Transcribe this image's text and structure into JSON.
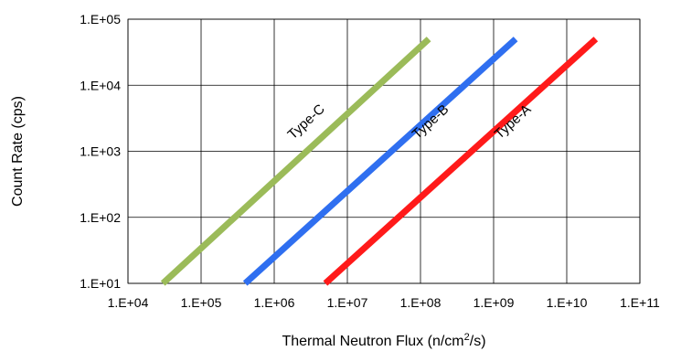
{
  "chart_data": {
    "type": "line",
    "xlabel": "Thermal Neutron Flux (n/cm",
    "xlabel_sup": "2",
    "xlabel_tail": "/s)",
    "ylabel": "Count Rate (cps)",
    "x_scale": "log",
    "y_scale": "log",
    "xlim": [
      10000,
      100000000000
    ],
    "ylim": [
      10,
      100000
    ],
    "x_ticks": [
      {
        "value": 10000,
        "label": "1.E+04"
      },
      {
        "value": 100000,
        "label": "1.E+05"
      },
      {
        "value": 1000000,
        "label": "1.E+06"
      },
      {
        "value": 10000000,
        "label": "1.E+07"
      },
      {
        "value": 100000000,
        "label": "1.E+08"
      },
      {
        "value": 1000000000,
        "label": "1.E+09"
      },
      {
        "value": 10000000000,
        "label": "1.E+10"
      },
      {
        "value": 100000000000,
        "label": "1.E+11"
      }
    ],
    "y_ticks": [
      {
        "value": 10,
        "label": "1.E+01"
      },
      {
        "value": 100,
        "label": "1.E+02"
      },
      {
        "value": 1000,
        "label": "1.E+03"
      },
      {
        "value": 10000,
        "label": "1.E+04"
      },
      {
        "value": 100000,
        "label": "1.E+05"
      }
    ],
    "grid": true,
    "legend": "none",
    "series": [
      {
        "name": "Type-C",
        "color": "#9BBB59",
        "x": [
          30000,
          130000000
        ],
        "y": [
          10,
          50000
        ]
      },
      {
        "name": "Type-B",
        "color": "#2F6FF0",
        "x": [
          400000,
          2000000000
        ],
        "y": [
          10,
          50000
        ]
      },
      {
        "name": "Type-A",
        "color": "#FF1A1A",
        "x": [
          5000000,
          25000000000
        ],
        "y": [
          10,
          50000
        ]
      }
    ],
    "series_label_anchor": [
      {
        "x": 3000000,
        "y": 2500
      },
      {
        "x": 150000000,
        "y": 2500
      },
      {
        "x": 2000000000,
        "y": 2500
      }
    ]
  }
}
